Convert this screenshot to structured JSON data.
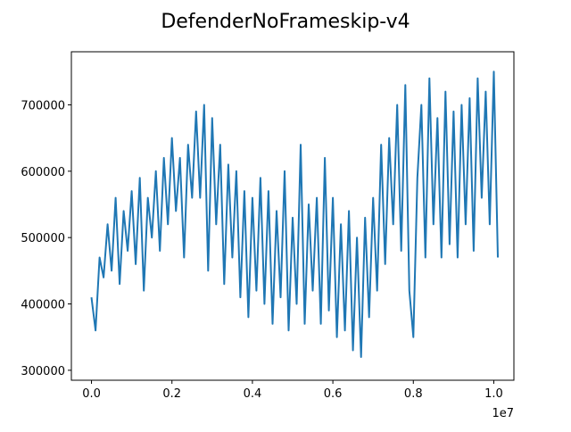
{
  "chart_data": {
    "type": "line",
    "title": "DefenderNoFrameskip-v4",
    "xlabel": "",
    "ylabel": "",
    "x_offset_label": "1e7",
    "xlim": [
      -0.05,
      1.05
    ],
    "ylim": [
      285000,
      780000
    ],
    "x_ticks": [
      0.0,
      0.2,
      0.4,
      0.6,
      0.8,
      1.0
    ],
    "x_tick_labels": [
      "0.0",
      "0.2",
      "0.4",
      "0.6",
      "0.8",
      "1.0"
    ],
    "y_ticks": [
      300000,
      400000,
      500000,
      600000,
      700000
    ],
    "y_tick_labels": [
      "300000",
      "400000",
      "500000",
      "600000",
      "700000"
    ],
    "grid": false,
    "line_color": "#1f77b4",
    "series": [
      {
        "x": [
          0.0,
          0.01,
          0.02,
          0.03,
          0.04,
          0.05,
          0.06,
          0.07,
          0.08,
          0.09,
          0.1,
          0.11,
          0.12,
          0.13,
          0.14,
          0.15,
          0.16,
          0.17,
          0.18,
          0.19,
          0.2,
          0.21,
          0.22,
          0.23,
          0.24,
          0.25,
          0.26,
          0.27,
          0.28,
          0.29,
          0.3,
          0.31,
          0.32,
          0.33,
          0.34,
          0.35,
          0.36,
          0.37,
          0.38,
          0.39,
          0.4,
          0.41,
          0.42,
          0.43,
          0.44,
          0.45,
          0.46,
          0.47,
          0.48,
          0.49,
          0.5,
          0.51,
          0.52,
          0.53,
          0.54,
          0.55,
          0.56,
          0.57,
          0.58,
          0.59,
          0.6,
          0.61,
          0.62,
          0.63,
          0.64,
          0.65,
          0.66,
          0.67,
          0.68,
          0.69,
          0.7,
          0.71,
          0.72,
          0.73,
          0.74,
          0.75,
          0.76,
          0.77,
          0.78,
          0.79,
          0.8,
          0.81,
          0.82,
          0.83,
          0.84,
          0.85,
          0.86,
          0.87,
          0.88,
          0.89,
          0.9,
          0.91,
          0.92,
          0.93,
          0.94,
          0.95,
          0.96,
          0.97,
          0.98,
          0.99,
          1.0,
          1.01
        ],
        "y": [
          410000,
          360000,
          470000,
          440000,
          520000,
          450000,
          560000,
          430000,
          540000,
          480000,
          570000,
          460000,
          590000,
          420000,
          560000,
          500000,
          600000,
          480000,
          620000,
          520000,
          650000,
          540000,
          620000,
          470000,
          640000,
          560000,
          690000,
          560000,
          700000,
          450000,
          680000,
          520000,
          640000,
          430000,
          610000,
          470000,
          600000,
          410000,
          570000,
          380000,
          560000,
          420000,
          590000,
          400000,
          570000,
          370000,
          540000,
          410000,
          600000,
          360000,
          530000,
          400000,
          640000,
          370000,
          550000,
          420000,
          560000,
          370000,
          620000,
          390000,
          560000,
          350000,
          520000,
          360000,
          540000,
          330000,
          500000,
          320000,
          530000,
          380000,
          560000,
          420000,
          640000,
          460000,
          650000,
          520000,
          700000,
          480000,
          730000,
          420000,
          350000,
          590000,
          700000,
          470000,
          740000,
          520000,
          680000,
          470000,
          720000,
          490000,
          690000,
          470000,
          700000,
          520000,
          710000,
          480000,
          740000,
          560000,
          720000,
          520000,
          750000,
          470000
        ]
      }
    ]
  }
}
